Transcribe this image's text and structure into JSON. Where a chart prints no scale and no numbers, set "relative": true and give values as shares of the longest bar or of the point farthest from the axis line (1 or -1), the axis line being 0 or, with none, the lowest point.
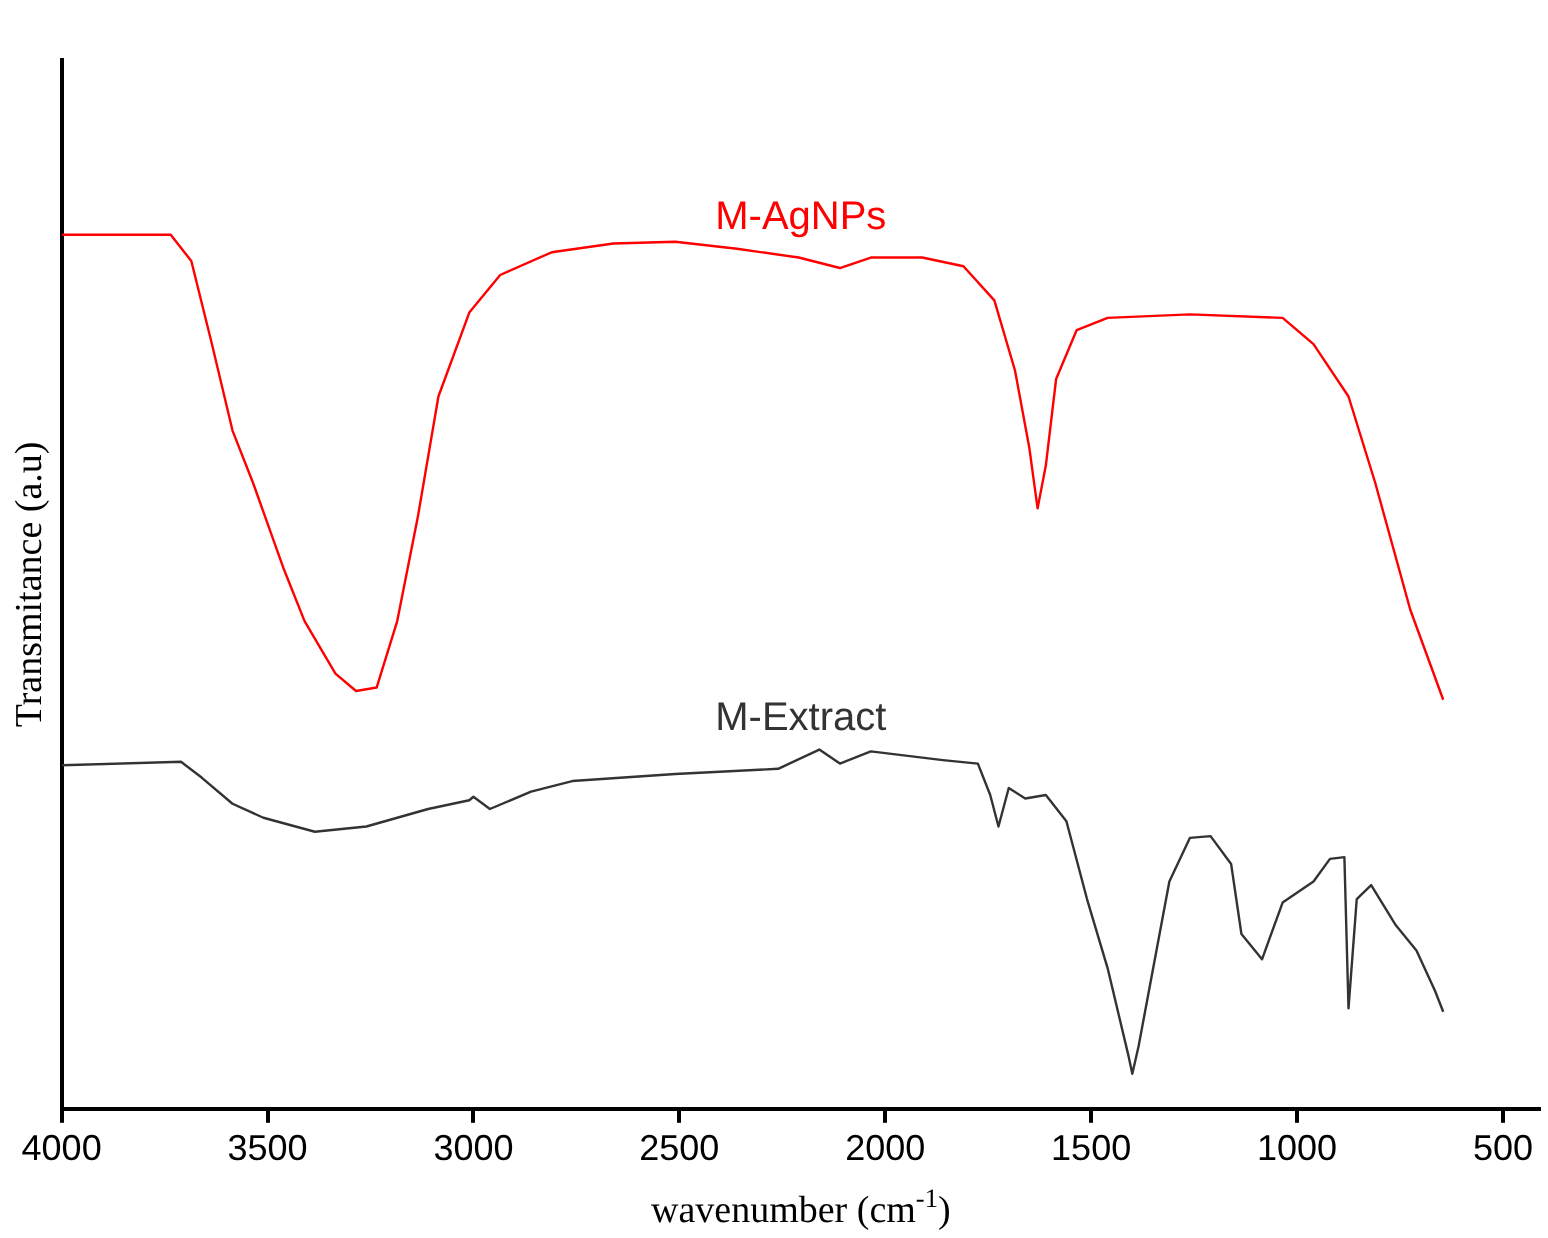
{
  "chart_data": {
    "type": "line",
    "relative": true,
    "xlabel": "wavenumber (cm$^{-1}$)",
    "ylabel": "Transmitance (a.u)",
    "xlim": [
      4000,
      410
    ],
    "xticks": [
      4000,
      3500,
      3000,
      2500,
      2000,
      1500,
      1000,
      500
    ],
    "grid": false,
    "legend": false,
    "marker": "none",
    "line_style": "solid",
    "series": [
      {
        "name": "M-AgNPs",
        "color": "#ff0000",
        "x": [
          4000,
          3735,
          3685,
          3635,
          3585,
          3535,
          3460,
          3410,
          3335,
          3285,
          3235,
          3185,
          3135,
          3085,
          3010,
          2935,
          2810,
          2660,
          2510,
          2360,
          2210,
          2110,
          2035,
          1910,
          1810,
          1735,
          1685,
          1650,
          1630,
          1610,
          1585,
          1535,
          1460,
          1260,
          1035,
          960,
          875,
          810,
          725,
          645
        ],
        "values": [
          1.0,
          1.0,
          0.97,
          0.875,
          0.776,
          0.716,
          0.617,
          0.558,
          0.498,
          0.478,
          0.482,
          0.558,
          0.677,
          0.815,
          0.911,
          0.954,
          0.98,
          0.99,
          0.992,
          0.984,
          0.974,
          0.962,
          0.974,
          0.974,
          0.964,
          0.925,
          0.845,
          0.756,
          0.687,
          0.736,
          0.835,
          0.891,
          0.905,
          0.909,
          0.905,
          0.875,
          0.815,
          0.716,
          0.571,
          0.468
        ]
      },
      {
        "name": "M-Extract",
        "color": "#333333",
        "x": [
          4000,
          3710,
          3660,
          3585,
          3510,
          3385,
          3260,
          3110,
          3010,
          3000,
          2960,
          2860,
          2760,
          2510,
          2260,
          2160,
          2110,
          2035,
          1860,
          1775,
          1745,
          1725,
          1700,
          1660,
          1610,
          1560,
          1510,
          1460,
          1410,
          1400,
          1385,
          1310,
          1260,
          1210,
          1160,
          1135,
          1085,
          1035,
          960,
          920,
          885,
          875,
          855,
          820,
          760,
          710,
          665,
          645
        ],
        "values": [
          0.393,
          0.397,
          0.379,
          0.349,
          0.333,
          0.317,
          0.323,
          0.343,
          0.353,
          0.357,
          0.343,
          0.363,
          0.375,
          0.383,
          0.389,
          0.411,
          0.395,
          0.409,
          0.399,
          0.395,
          0.359,
          0.323,
          0.367,
          0.355,
          0.359,
          0.329,
          0.24,
          0.161,
          0.062,
          0.04,
          0.071,
          0.26,
          0.31,
          0.312,
          0.28,
          0.2,
          0.171,
          0.236,
          0.26,
          0.286,
          0.288,
          0.115,
          0.24,
          0.256,
          0.21,
          0.181,
          0.135,
          0.111
        ]
      }
    ]
  }
}
